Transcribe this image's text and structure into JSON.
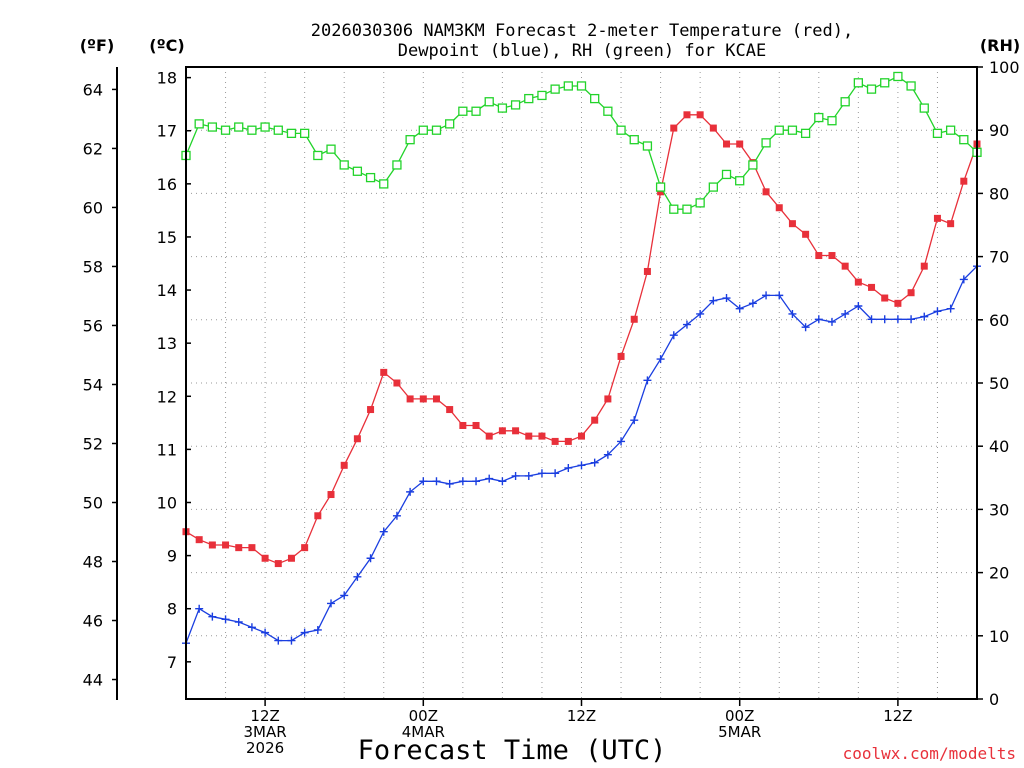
{
  "chart_data": {
    "type": "line",
    "title_line1": "2026030306 NAM3KM Forecast 2-meter Temperature (red),",
    "title_line2": "Dewpoint (blue), RH (green) for KCAE",
    "xlabel": "Forecast Time (UTC)",
    "watermark": "coolwx.com/modelts",
    "axes": {
      "left_outer": {
        "label": "(ºF)",
        "ticks": [
          44,
          46,
          48,
          50,
          52,
          54,
          56,
          58,
          60,
          62,
          64
        ]
      },
      "left_inner": {
        "label": "(ºC)",
        "ticks": [
          7,
          8,
          9,
          10,
          11,
          12,
          13,
          14,
          15,
          16,
          17,
          18
        ],
        "ylim": [
          6.3,
          18.2
        ]
      },
      "right": {
        "label": "(RH)",
        "ticks": [
          0,
          10,
          20,
          30,
          40,
          50,
          60,
          70,
          80,
          90,
          100
        ],
        "ylim": [
          0,
          100
        ]
      }
    },
    "x_hours_range": [
      6,
      66
    ],
    "x_ticks": [
      {
        "hour": 12,
        "lines": [
          "12Z",
          "3MAR",
          "2026"
        ]
      },
      {
        "hour": 24,
        "lines": [
          "00Z",
          "4MAR"
        ]
      },
      {
        "hour": 36,
        "lines": [
          "12Z"
        ]
      },
      {
        "hour": 48,
        "lines": [
          "00Z",
          "5MAR"
        ]
      },
      {
        "hour": 60,
        "lines": [
          "12Z"
        ]
      }
    ],
    "grid": true,
    "series": [
      {
        "name": "2-meter Temperature",
        "unit": "C",
        "color": "#e8303a",
        "marker": "filled-square",
        "hours": [
          6,
          7,
          8,
          9,
          10,
          11,
          12,
          13,
          14,
          15,
          16,
          17,
          18,
          19,
          20,
          21,
          22,
          23,
          24,
          25,
          26,
          27,
          28,
          29,
          30,
          31,
          32,
          33,
          34,
          35,
          36,
          37,
          38,
          39,
          40,
          41,
          42,
          43,
          44,
          45,
          46,
          47,
          48,
          49,
          50,
          51,
          52,
          53,
          54,
          55,
          56,
          57,
          58,
          59,
          60,
          61,
          62,
          63,
          64,
          65,
          66
        ],
        "values": [
          9.45,
          9.3,
          9.2,
          9.2,
          9.15,
          9.15,
          8.95,
          8.85,
          8.95,
          9.15,
          9.75,
          10.15,
          10.7,
          11.2,
          11.75,
          12.45,
          12.25,
          11.95,
          11.95,
          11.95,
          11.75,
          11.45,
          11.45,
          11.25,
          11.35,
          11.35,
          11.25,
          11.25,
          11.15,
          11.15,
          11.25,
          11.55,
          11.95,
          12.75,
          13.45,
          14.35,
          15.85,
          17.05,
          17.3,
          17.3,
          17.05,
          16.75,
          16.75,
          16.4,
          15.85,
          15.55,
          15.25,
          15.05,
          14.65,
          14.65,
          14.45,
          14.15,
          14.05,
          13.85,
          13.75,
          13.95,
          14.45,
          15.35,
          15.25,
          16.05,
          16.75
        ]
      },
      {
        "name": "Dewpoint",
        "unit": "C",
        "color": "#1a3ee0",
        "marker": "plus",
        "hours": [
          6,
          7,
          8,
          9,
          10,
          11,
          12,
          13,
          14,
          15,
          16,
          17,
          18,
          19,
          20,
          21,
          22,
          23,
          24,
          25,
          26,
          27,
          28,
          29,
          30,
          31,
          32,
          33,
          34,
          35,
          36,
          37,
          38,
          39,
          40,
          41,
          42,
          43,
          44,
          45,
          46,
          47,
          48,
          49,
          50,
          51,
          52,
          53,
          54,
          55,
          56,
          57,
          58,
          59,
          60,
          61,
          62,
          63,
          64,
          65,
          66
        ],
        "values": [
          7.35,
          8.0,
          7.85,
          7.8,
          7.75,
          7.65,
          7.55,
          7.4,
          7.4,
          7.55,
          7.6,
          8.1,
          8.25,
          8.6,
          8.95,
          9.45,
          9.75,
          10.2,
          10.4,
          10.4,
          10.35,
          10.4,
          10.4,
          10.45,
          10.4,
          10.5,
          10.5,
          10.55,
          10.55,
          10.65,
          10.7,
          10.75,
          10.9,
          11.15,
          11.55,
          12.3,
          12.7,
          13.15,
          13.35,
          13.55,
          13.8,
          13.85,
          13.65,
          13.75,
          13.9,
          13.9,
          13.55,
          13.3,
          13.45,
          13.4,
          13.55,
          13.7,
          13.45,
          13.45,
          13.45,
          13.45,
          13.5,
          13.6,
          13.65,
          14.2,
          14.45
        ]
      },
      {
        "name": "RH",
        "unit": "%",
        "color": "#22d32a",
        "marker": "open-square",
        "hours": [
          6,
          7,
          8,
          9,
          10,
          11,
          12,
          13,
          14,
          15,
          16,
          17,
          18,
          19,
          20,
          21,
          22,
          23,
          24,
          25,
          26,
          27,
          28,
          29,
          30,
          31,
          32,
          33,
          34,
          35,
          36,
          37,
          38,
          39,
          40,
          41,
          42,
          43,
          44,
          45,
          46,
          47,
          48,
          49,
          50,
          51,
          52,
          53,
          54,
          55,
          56,
          57,
          58,
          59,
          60,
          61,
          62,
          63,
          64,
          65,
          66
        ],
        "values": [
          86,
          91,
          90.5,
          90,
          90.5,
          90,
          90.5,
          90,
          89.5,
          89.5,
          86,
          87,
          84.5,
          83.5,
          82.5,
          81.5,
          84.5,
          88.5,
          90,
          90,
          91,
          93,
          93,
          94.5,
          93.5,
          94,
          95,
          95.5,
          96.5,
          97,
          97,
          95,
          93,
          90,
          88.5,
          87.5,
          81,
          77.5,
          77.5,
          78.5,
          81,
          83,
          82,
          84.5,
          88,
          90,
          90,
          89.5,
          92,
          91.5,
          94.5,
          97.5,
          96.5,
          97.5,
          98.5,
          97,
          93.5,
          89.5,
          90,
          88.5,
          86.5
        ]
      }
    ]
  }
}
